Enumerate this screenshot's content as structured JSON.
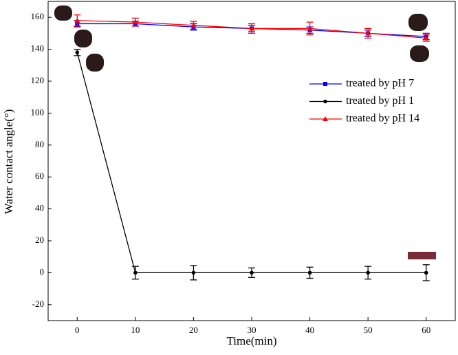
{
  "chart_data": {
    "type": "line",
    "x_label": "Time(min)",
    "y_label": "Water contact angle(°)",
    "x": [
      0,
      10,
      20,
      30,
      40,
      50,
      60
    ],
    "series": [
      {
        "name": "treated by pH 7",
        "color": "#0000ff",
        "marker": "square",
        "values": [
          156,
          156,
          154,
          153,
          152,
          150,
          148
        ],
        "errors": [
          2,
          1.5,
          2,
          2,
          2,
          2,
          2
        ]
      },
      {
        "name": "treated by pH 1",
        "color": "#000000",
        "marker": "circle",
        "values": [
          138,
          0,
          0,
          0,
          0,
          0,
          0
        ],
        "errors": [
          2,
          4,
          4.5,
          3,
          3.5,
          4,
          5
        ]
      },
      {
        "name": "treated by pH 14",
        "color": "#ff0000",
        "marker": "triangle",
        "values": [
          158,
          157,
          155,
          153,
          153,
          150,
          147
        ],
        "errors": [
          3.5,
          2.5,
          2.5,
          3,
          4,
          3,
          2
        ]
      }
    ],
    "xlim": [
      -5,
      65
    ],
    "ylim": [
      -30,
      170
    ],
    "xticks": [
      0,
      10,
      20,
      30,
      40,
      50,
      60
    ],
    "yticks": [
      -20,
      0,
      20,
      40,
      60,
      80,
      100,
      120,
      140,
      160
    ],
    "legend": "upper right"
  }
}
